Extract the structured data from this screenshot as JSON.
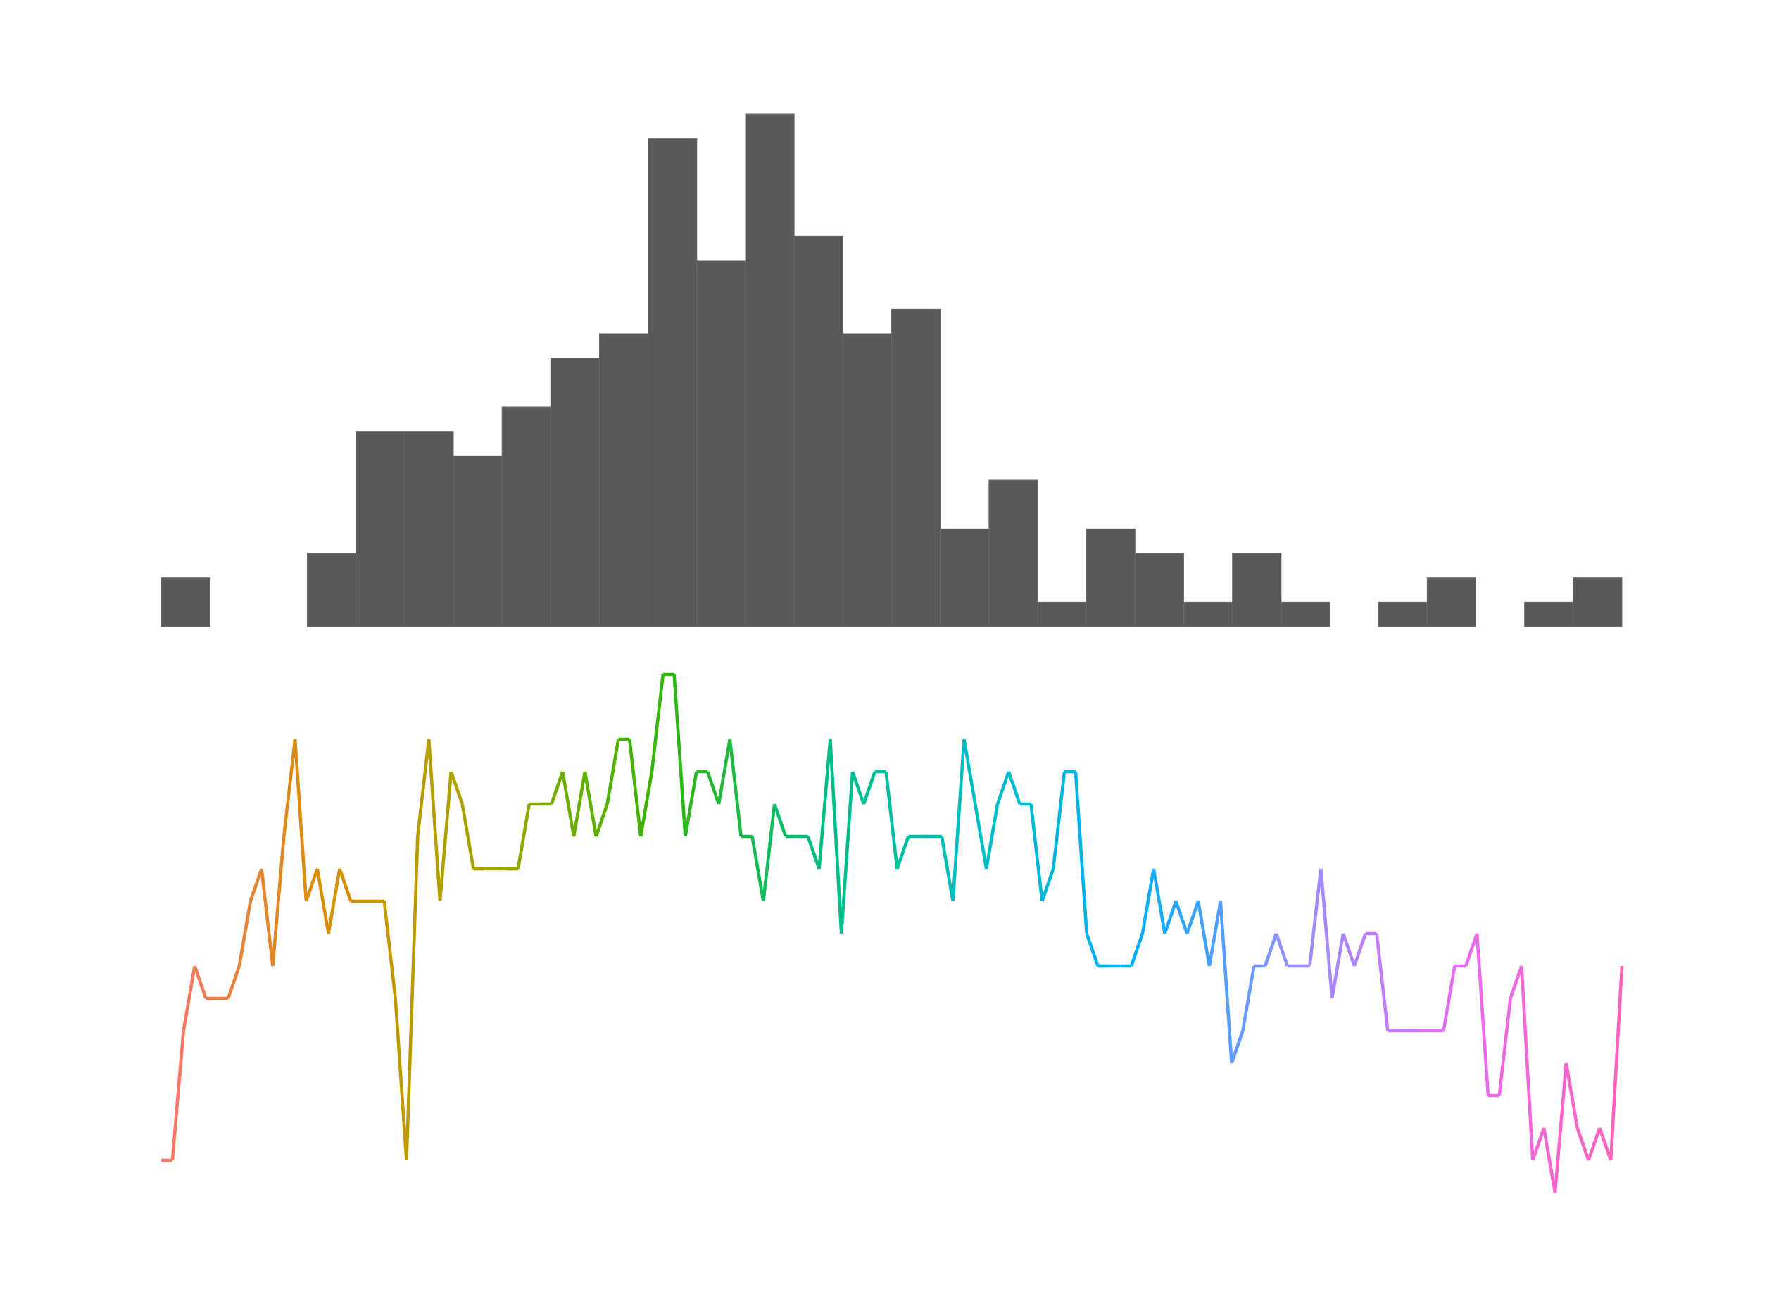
{
  "chart_data": [
    {
      "type": "bar",
      "title": "",
      "xlabel": "",
      "ylabel": "",
      "axes_visible": false,
      "grid": false,
      "bar_color": "#595959",
      "bin_count": 30,
      "counts": [
        2,
        0,
        0,
        3,
        8,
        8,
        7,
        9,
        11,
        12,
        20,
        15,
        21,
        16,
        12,
        13,
        4,
        6,
        1,
        4,
        3,
        1,
        3,
        1,
        0,
        1,
        2,
        0,
        1,
        2
      ],
      "ylim": [
        0,
        21
      ]
    },
    {
      "type": "line",
      "title": "",
      "xlabel": "",
      "ylabel": "",
      "axes_visible": false,
      "grid": false,
      "legend": "none",
      "colored_by_index_gradient": true,
      "palette": [
        "#F8766D",
        "#D89000",
        "#A3A500",
        "#39B600",
        "#00BF7D",
        "#00BFC4",
        "#00B0F6",
        "#9590FF",
        "#E76BF3",
        "#FF62BC"
      ],
      "ylim": [
        -3,
        12
      ],
      "values": [
        0,
        0,
        4,
        6,
        5,
        5,
        5,
        6,
        8,
        9,
        6,
        10,
        13,
        8,
        9,
        7,
        9,
        8,
        8,
        8,
        8,
        5,
        0,
        10,
        13,
        8,
        12,
        11,
        9,
        9,
        9,
        9,
        9,
        11,
        11,
        11,
        12,
        10,
        12,
        10,
        11,
        13,
        13,
        10,
        12,
        15,
        15,
        10,
        12,
        12,
        11,
        13,
        10,
        10,
        8,
        11,
        10,
        10,
        10,
        9,
        13,
        7,
        12,
        11,
        12,
        12,
        9,
        10,
        10,
        10,
        10,
        8,
        13,
        11,
        9,
        11,
        12,
        11,
        11,
        8,
        9,
        12,
        12,
        7,
        6,
        6,
        6,
        6,
        7,
        9,
        7,
        8,
        7,
        8,
        6,
        8,
        3,
        4,
        6,
        6,
        7,
        6,
        6,
        6,
        9,
        5,
        7,
        6,
        7,
        7,
        4,
        4,
        4,
        4,
        4,
        4,
        6,
        6,
        7,
        2,
        2,
        5,
        6,
        0,
        1,
        -1,
        3,
        1,
        0,
        1,
        0,
        6
      ]
    }
  ]
}
